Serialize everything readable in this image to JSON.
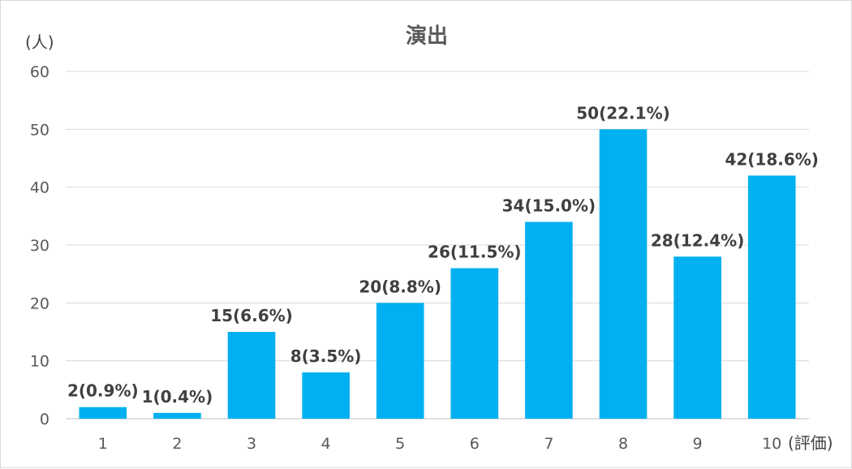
{
  "chart_data": {
    "type": "bar",
    "title": "演出",
    "ylabel": "(人)",
    "xlabel": "(評価)",
    "ylim": [
      0,
      60
    ],
    "yticks": [
      "0",
      "10",
      "20",
      "30",
      "40",
      "50",
      "60"
    ],
    "categories": [
      "1",
      "2",
      "3",
      "4",
      "5",
      "6",
      "7",
      "8",
      "9",
      "10"
    ],
    "values": [
      2,
      1,
      15,
      8,
      20,
      26,
      34,
      50,
      28,
      42
    ],
    "data_labels": [
      "2(0.9%)",
      "1(0.4%)",
      "15(6.6%)",
      "8(3.5%)",
      "20(8.8%)",
      "26(11.5%)",
      "34(15.0%)",
      "50(22.1%)",
      "28(12.4%)",
      "42(18.6%)"
    ],
    "bar_color": "#00B0F0",
    "grid": true,
    "legend": "none"
  }
}
